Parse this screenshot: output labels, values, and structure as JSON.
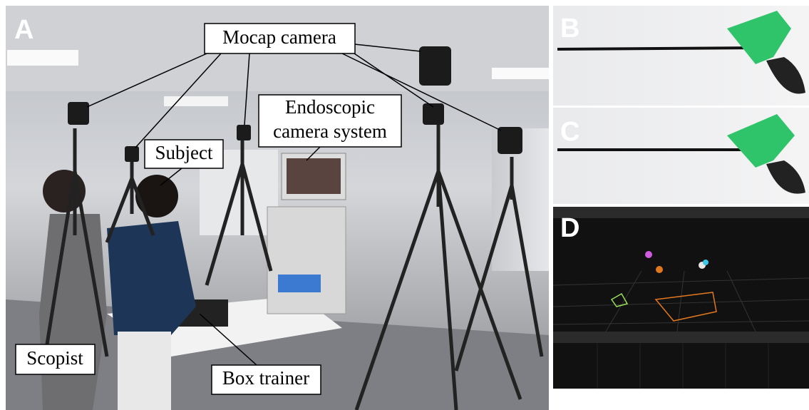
{
  "panels": {
    "a": "A",
    "b": "B",
    "c": "C",
    "d": "D"
  },
  "annotations": {
    "mocap_camera": "Mocap camera",
    "endoscopic_camera_system": [
      "Endoscopic",
      "camera system"
    ],
    "subject": "Subject",
    "scopist": "Scopist",
    "box_trainer": "Box trainer"
  }
}
